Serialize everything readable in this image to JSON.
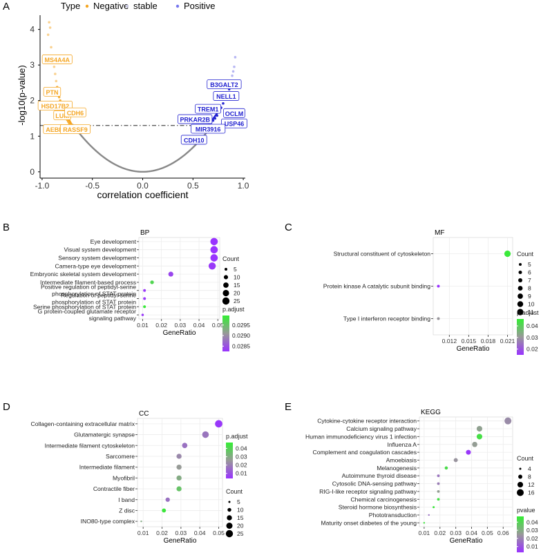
{
  "colors": {
    "negative": "#F5A623",
    "stable": "#C6C6DF",
    "positive": "#2020D0",
    "curve": "#888888",
    "padj_low": "#9933FF",
    "padj_high": "#33EE33"
  },
  "chart_data": [
    {
      "panel": "A",
      "type": "scatter",
      "xlabel": "correlation coefficient",
      "ylabel": "-log10(p-value)",
      "xticks": [
        "-1.0",
        "-0.5",
        "0.0",
        "0.5",
        "1.0"
      ],
      "xtick_vals": [
        -1.0,
        -0.5,
        0.0,
        0.5,
        1.0
      ],
      "yticks": [
        "0",
        "1",
        "2",
        "3",
        "4"
      ],
      "ytick_vals": [
        0,
        1,
        2,
        3,
        4
      ],
      "xlim": [
        -1.02,
        1.02
      ],
      "ylim": [
        -0.1,
        4.4
      ],
      "threshold": 1.3,
      "legend": {
        "title": "Type",
        "items": [
          {
            "name": "Negative",
            "key": "negative"
          },
          {
            "name": "stable",
            "key": "stable"
          },
          {
            "name": "Positive",
            "key": "positive"
          }
        ],
        "position": "top"
      },
      "labels": [
        {
          "text": "MS4A4A",
          "x": -0.85,
          "y": 3.15,
          "side": "negative"
        },
        {
          "text": "PTN",
          "x": -0.9,
          "y": 2.24,
          "side": "negative"
        },
        {
          "text": "HSD17B2",
          "x": -0.87,
          "y": 1.85,
          "side": "negative"
        },
        {
          "text": "LUM",
          "x": -0.8,
          "y": 1.58,
          "side": "negative"
        },
        {
          "text": "CDH6",
          "x": -0.67,
          "y": 1.66,
          "side": "negative"
        },
        {
          "text": "AEBP1",
          "x": -0.86,
          "y": 1.19,
          "side": "negative"
        },
        {
          "text": "RASSF9",
          "x": -0.67,
          "y": 1.19,
          "side": "negative"
        },
        {
          "text": "B3GALT2",
          "x": 0.81,
          "y": 2.45,
          "side": "positive"
        },
        {
          "text": "NELL1",
          "x": 0.83,
          "y": 2.12,
          "side": "positive"
        },
        {
          "text": "TREM1",
          "x": 0.65,
          "y": 1.76,
          "side": "positive"
        },
        {
          "text": "OCLM",
          "x": 0.91,
          "y": 1.64,
          "side": "positive"
        },
        {
          "text": "PRKAR2B",
          "x": 0.52,
          "y": 1.47,
          "side": "positive"
        },
        {
          "text": "USP46",
          "x": 0.91,
          "y": 1.35,
          "side": "positive"
        },
        {
          "text": "MIR3916",
          "x": 0.65,
          "y": 1.2,
          "side": "positive"
        },
        {
          "text": "CDH10",
          "x": 0.51,
          "y": 0.89,
          "side": "positive"
        }
      ],
      "negative_points": [
        [
          -0.93,
          4.2
        ],
        [
          -0.92,
          4.05
        ],
        [
          -0.94,
          3.85
        ],
        [
          -0.91,
          3.5
        ],
        [
          -0.9,
          3.25
        ],
        [
          -0.89,
          3.15
        ],
        [
          -0.88,
          2.95
        ],
        [
          -0.87,
          2.75
        ],
        [
          -0.86,
          2.55
        ],
        [
          -0.85,
          2.38
        ],
        [
          -0.84,
          2.24
        ],
        [
          -0.83,
          2.1
        ],
        [
          -0.82,
          2.0
        ],
        [
          -0.81,
          1.9
        ],
        [
          -0.8,
          1.82
        ],
        [
          -0.79,
          1.74
        ],
        [
          -0.78,
          1.66
        ],
        [
          -0.77,
          1.58
        ],
        [
          -0.76,
          1.52
        ],
        [
          -0.75,
          1.46
        ],
        [
          -0.74,
          1.41
        ],
        [
          -0.73,
          1.36
        ],
        [
          -0.72,
          1.32
        ]
      ],
      "positive_points": [
        [
          0.92,
          3.22
        ],
        [
          0.91,
          2.95
        ],
        [
          0.9,
          2.82
        ],
        [
          0.89,
          2.7
        ],
        [
          0.88,
          2.55
        ],
        [
          0.87,
          2.45
        ],
        [
          0.86,
          2.32
        ],
        [
          0.84,
          2.18
        ],
        [
          0.82,
          2.05
        ],
        [
          0.8,
          1.92
        ],
        [
          0.78,
          1.8
        ],
        [
          0.76,
          1.68
        ],
        [
          0.74,
          1.58
        ],
        [
          0.72,
          1.5
        ],
        [
          0.7,
          1.44
        ],
        [
          0.68,
          1.38
        ],
        [
          0.66,
          1.33
        ]
      ]
    },
    {
      "panel": "B",
      "type": "scatter",
      "title": "BP",
      "xlabel": "GeneRatio",
      "xticks": [
        "0.01",
        "0.02",
        "0.03",
        "0.04",
        "0.05"
      ],
      "xtick_vals": [
        0.01,
        0.02,
        0.03,
        0.04,
        0.05
      ],
      "xlim": [
        0.008,
        0.051
      ],
      "categories": [
        "Eye development",
        "Visual system development",
        "Sensory system development",
        "Camera-type eye development",
        "Embryonic skeletal system development",
        "Intermediate filament-based process",
        "Positive regulation of peptidyl-serine\nphosphorylation of STAT protein",
        "Regulation of peptidyl-serine\nphosphorylation of STAT protein",
        "Serine phosphorylation of STAT protein",
        "G protein-coupled glutamate receptor\nsignaling pathway"
      ],
      "x": [
        0.048,
        0.048,
        0.048,
        0.047,
        0.025,
        0.015,
        0.011,
        0.011,
        0.011,
        0.01
      ],
      "count": [
        26,
        26,
        26,
        25,
        13,
        8,
        5,
        5,
        5,
        4
      ],
      "color_value": [
        0.02825,
        0.02825,
        0.02825,
        0.0283,
        0.0284,
        0.0297,
        0.0283,
        0.0283,
        0.0299,
        0.0283
      ],
      "size_legend": {
        "title": "Count",
        "values": [
          5,
          10,
          15,
          20,
          25
        ]
      },
      "color_legend": {
        "title": "p.adjust",
        "ticks": [
          "0.0295",
          "0.0290",
          "0.0285"
        ],
        "tick_vals": [
          0.0295,
          0.029,
          0.0285
        ],
        "range": [
          0.02825,
          0.02995
        ]
      }
    },
    {
      "panel": "C",
      "type": "scatter",
      "title": "MF",
      "xlabel": "GeneRatio",
      "xticks": [
        "0.012",
        "0.015",
        "0.018",
        "0.021"
      ],
      "xtick_vals": [
        0.012,
        0.015,
        0.018,
        0.021
      ],
      "xlim": [
        0.0095,
        0.0218
      ],
      "categories": [
        "Structural constituent of cytoskeleton",
        "Protein kinase A catalytic subunit binding",
        "Type I interferon receptor binding"
      ],
      "x": [
        0.021,
        0.0103,
        0.0103
      ],
      "count": [
        11,
        5,
        5
      ],
      "color_value": [
        0.045,
        0.015,
        0.03
      ],
      "size_legend": {
        "title": "Count",
        "values": [
          5,
          6,
          7,
          8,
          9,
          10,
          11
        ]
      },
      "color_legend": {
        "title": "p.adjust",
        "ticks": [
          "0.04",
          "0.03",
          "0.02"
        ],
        "tick_vals": [
          0.04,
          0.03,
          0.02
        ],
        "range": [
          0.015,
          0.046
        ]
      }
    },
    {
      "panel": "D",
      "type": "scatter",
      "title": "CC",
      "xlabel": "GeneRatio",
      "xticks": [
        "0.01",
        "0.02",
        "0.03",
        "0.04",
        "0.05"
      ],
      "xtick_vals": [
        0.01,
        0.02,
        0.03,
        0.04,
        0.05
      ],
      "xlim": [
        0.007,
        0.052
      ],
      "categories": [
        "Collagen-containing extracellular matrix",
        "Glutamatergic synapse",
        "Intermediate filament cytoskeleton",
        "Sarcomere",
        "Intermediate filament",
        "Myofibril",
        "Contractile fiber",
        "I band",
        "Z disc",
        "INO80-type complex"
      ],
      "x": [
        0.05,
        0.043,
        0.032,
        0.029,
        0.029,
        0.029,
        0.029,
        0.023,
        0.021,
        0.009
      ],
      "count": [
        26,
        22,
        16,
        15,
        15,
        15,
        15,
        12,
        11,
        4
      ],
      "color_value": [
        0.005,
        0.018,
        0.017,
        0.022,
        0.026,
        0.03,
        0.036,
        0.017,
        0.045,
        0.03
      ],
      "size_legend": {
        "title": "Count",
        "values": [
          5,
          10,
          15,
          20,
          25
        ]
      },
      "color_legend": {
        "title": "p.adjust",
        "ticks": [
          "0.04",
          "0.03",
          "0.02",
          "0.01"
        ],
        "tick_vals": [
          0.04,
          0.03,
          0.02,
          0.01
        ],
        "range": [
          0.004,
          0.047
        ]
      }
    },
    {
      "panel": "E",
      "type": "scatter",
      "title": "KEGG",
      "xlabel": "GeneRatio",
      "xticks": [
        "0.01",
        "0.02",
        "0.03",
        "0.04",
        "0.05",
        "0.06"
      ],
      "xtick_vals": [
        0.01,
        0.02,
        0.03,
        0.04,
        0.05,
        0.06
      ],
      "xlim": [
        0.007,
        0.066
      ],
      "categories": [
        "Cytokine-cytokine receptor interaction",
        "Calcium signaling pathway",
        "Human immunodeficiency virus 1 infection",
        "Influenza A",
        "Complement and coagulation cascades",
        "Amoebiasis",
        "Melanogenesis",
        "Autoimmune thyroid disease",
        "Cytosolic DNA-sensing pathway",
        "RIG-I-like receptor signaling pathway",
        "Chemical carcinogenesis",
        "Steroid hormone biosynthesis",
        "Phototransduction",
        "Maturity onset diabetes of the young"
      ],
      "x": [
        0.063,
        0.045,
        0.045,
        0.042,
        0.038,
        0.03,
        0.024,
        0.019,
        0.019,
        0.019,
        0.019,
        0.016,
        0.013,
        0.01
      ],
      "count": [
        16,
        12,
        12,
        11,
        10,
        8,
        6,
        5,
        5,
        5,
        5,
        4,
        3,
        2
      ],
      "color_value": [
        0.022,
        0.027,
        0.043,
        0.026,
        0.004,
        0.024,
        0.042,
        0.017,
        0.019,
        0.026,
        0.043,
        0.045,
        0.016,
        0.045
      ],
      "size_legend": {
        "title": "Count",
        "values": [
          4,
          8,
          12,
          16
        ]
      },
      "color_legend": {
        "title": "pvalue",
        "ticks": [
          "0.04",
          "0.03",
          "0.02",
          "0.01"
        ],
        "tick_vals": [
          0.04,
          0.03,
          0.02,
          0.01
        ],
        "range": [
          0.003,
          0.047
        ]
      }
    }
  ]
}
